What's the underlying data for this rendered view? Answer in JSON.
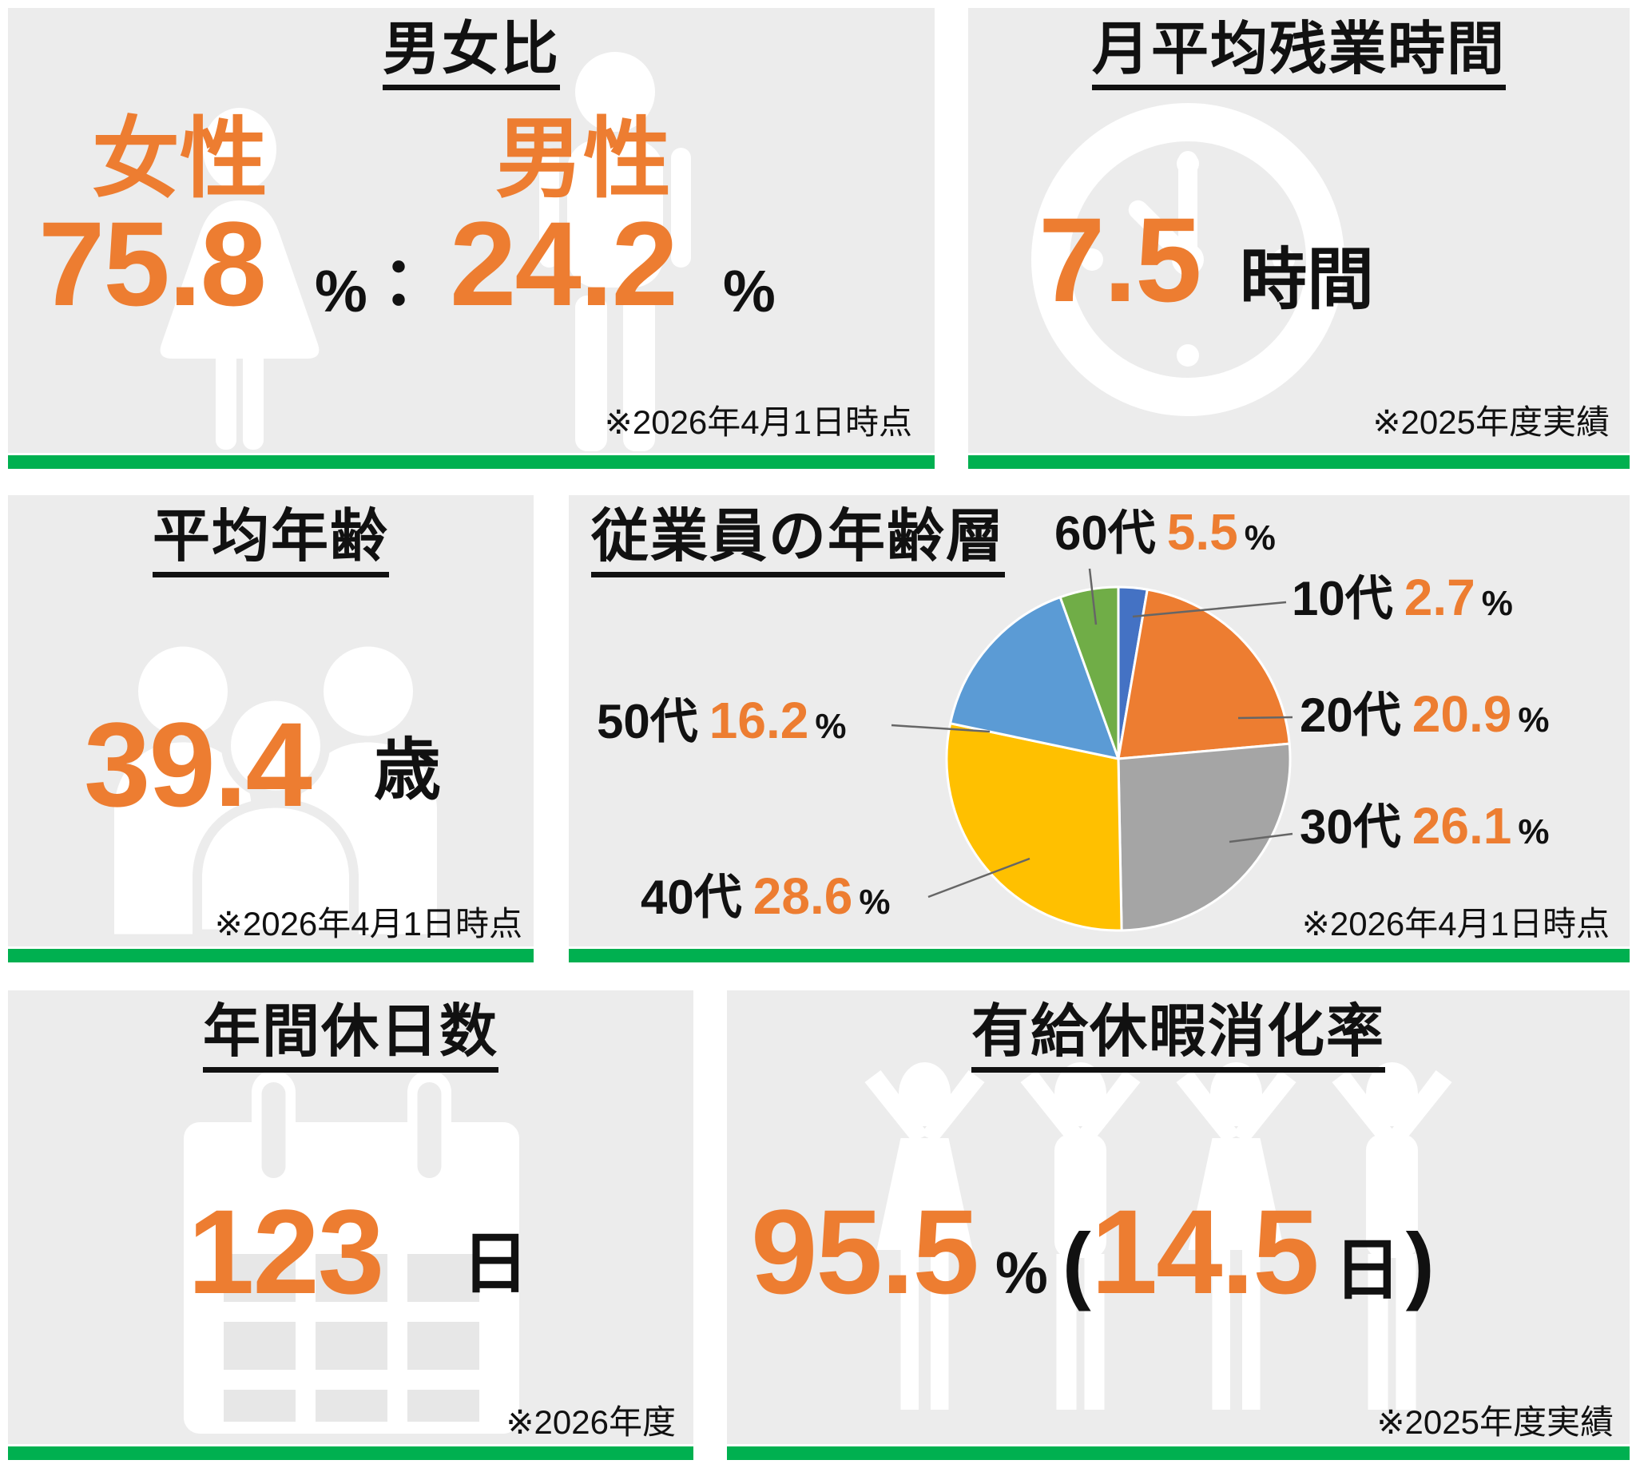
{
  "palette": {
    "accent_orange": "#ED7D31",
    "accent_green": "#00B050",
    "card_background": "#ECECEC",
    "text": "#111111"
  },
  "cards": {
    "gender": {
      "title": "男女比",
      "female_label": "女性",
      "female_value": "75.8",
      "female_unit": "%",
      "separator": "：",
      "male_label": "男性",
      "male_value": "24.2",
      "male_unit": "%",
      "note": "※2026年4月1日時点"
    },
    "overtime": {
      "title": "月平均残業時間",
      "value": "7.5",
      "unit": "時間",
      "note": "※2025年度実績"
    },
    "age": {
      "title": "平均年齢",
      "value": "39.4",
      "unit": "歳",
      "note": "※2026年4月1日時点"
    },
    "age_distribution": {
      "title": "従業員の年齢層",
      "note": "※2026年4月1日時点"
    },
    "holidays": {
      "title": "年間休日数",
      "value": "123",
      "unit": "日",
      "note": "※2026年度"
    },
    "paid_leave": {
      "title": "有給休暇消化率",
      "value": "95.5",
      "unit": "%",
      "paren_open": "(",
      "days_value": "14.5",
      "days_unit": "日",
      "paren_close": ")",
      "note": "※2025年度実績"
    }
  },
  "chart_data": {
    "type": "pie",
    "title": "従業員の年齢層",
    "categories": [
      "10代",
      "20代",
      "30代",
      "40代",
      "50代",
      "60代"
    ],
    "values": [
      2.7,
      20.9,
      26.1,
      28.6,
      16.2,
      5.5
    ],
    "unit": "%",
    "colors": [
      "#4472C4",
      "#ED7D31",
      "#A5A5A5",
      "#FFC000",
      "#5B9BD5",
      "#70AD47"
    ],
    "start_angle_deg": 0,
    "direction": "clockwise",
    "legend": "none",
    "label_style": "external-with-leader-lines",
    "note": "※2026年4月1日時点"
  }
}
